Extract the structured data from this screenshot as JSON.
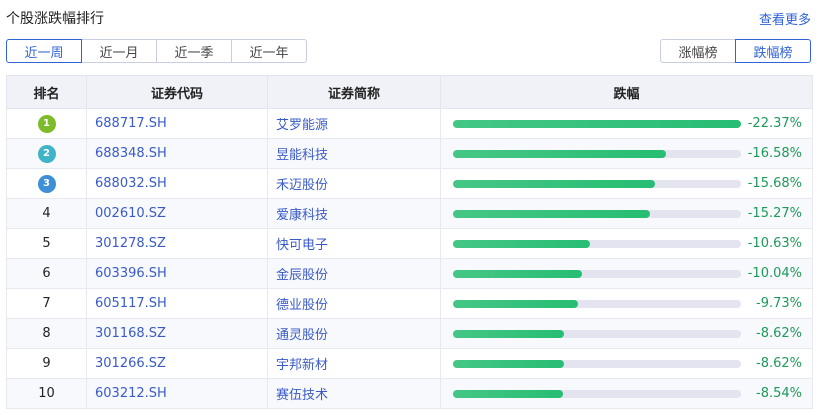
{
  "header": {
    "title": "个股涨跌幅排行",
    "more_label": "查看更多"
  },
  "periods": [
    {
      "label": "近一周",
      "active": true
    },
    {
      "label": "近一月"
    },
    {
      "label": "近一季"
    },
    {
      "label": "近一年"
    }
  ],
  "boards": [
    {
      "label": "涨幅榜"
    },
    {
      "label": "跌幅榜",
      "active": true
    }
  ],
  "table": {
    "columns": [
      "排名",
      "证券代码",
      "证券简称",
      "跌幅"
    ],
    "bar_color": "#2dbd76",
    "medal_colors": [
      "#7dbb2a",
      "#3fb4c8",
      "#3d8fd8"
    ],
    "rows": [
      {
        "rank": "1",
        "code": "688717.SH",
        "name": "艾罗能源",
        "change": "-22.37%",
        "value": -22.37
      },
      {
        "rank": "2",
        "code": "688348.SH",
        "name": "昱能科技",
        "change": "-16.58%",
        "value": -16.58
      },
      {
        "rank": "3",
        "code": "688032.SH",
        "name": "禾迈股份",
        "change": "-15.68%",
        "value": -15.68
      },
      {
        "rank": "4",
        "code": "002610.SZ",
        "name": "爱康科技",
        "change": "-15.27%",
        "value": -15.27
      },
      {
        "rank": "5",
        "code": "301278.SZ",
        "name": "快可电子",
        "change": "-10.63%",
        "value": -10.63
      },
      {
        "rank": "6",
        "code": "603396.SH",
        "name": "金辰股份",
        "change": "-10.04%",
        "value": -10.04
      },
      {
        "rank": "7",
        "code": "605117.SH",
        "name": "德业股份",
        "change": "-9.73%",
        "value": -9.73
      },
      {
        "rank": "8",
        "code": "301168.SZ",
        "name": "通灵股份",
        "change": "-8.62%",
        "value": -8.62
      },
      {
        "rank": "9",
        "code": "301266.SZ",
        "name": "宇邦新材",
        "change": "-8.62%",
        "value": -8.62
      },
      {
        "rank": "10",
        "code": "603212.SH",
        "name": "赛伍技术",
        "change": "-8.54%",
        "value": -8.54
      }
    ]
  }
}
